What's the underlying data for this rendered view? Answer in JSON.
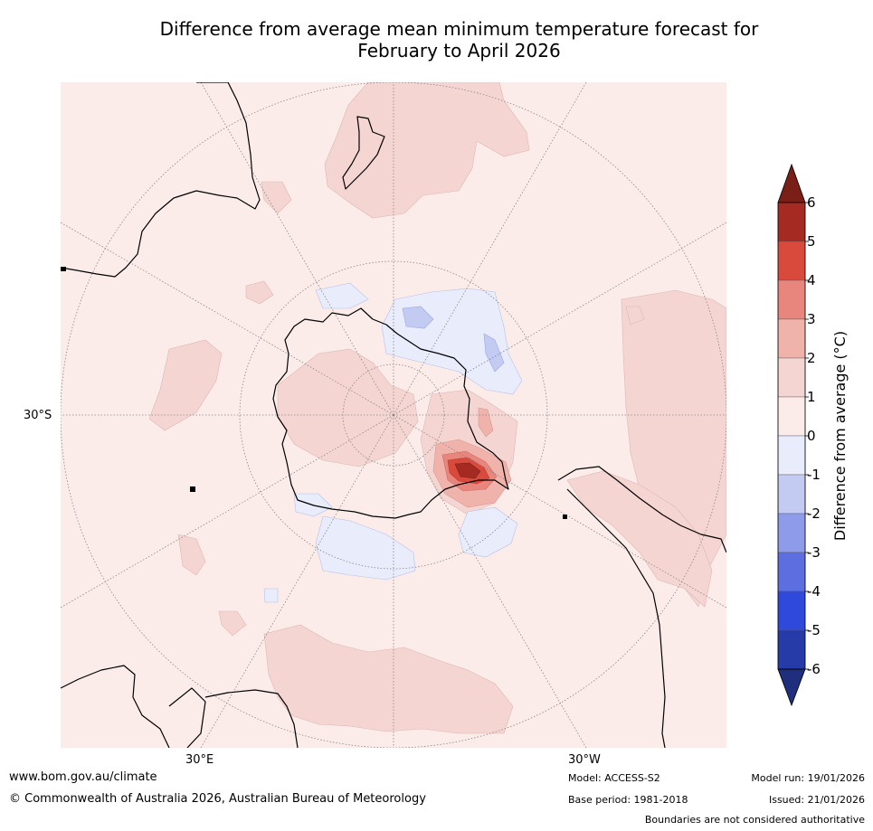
{
  "title_line1": "Difference from average mean minimum temperature forecast for",
  "title_line2": "February to April 2026",
  "map": {
    "lat_label": "30°S",
    "lon_label_left": "30°E",
    "lon_label_right": "30°W"
  },
  "colorbar": {
    "label": "Difference from average (°C)",
    "ticks": [
      "6",
      "5",
      "4",
      "3",
      "2",
      "1",
      "0",
      "-1",
      "-2",
      "-3",
      "-4",
      "-5",
      "-6"
    ],
    "colors_top_to_bottom": [
      "#a52a22",
      "#d94a3d",
      "#e8857c",
      "#efb3ac",
      "#f5d5d2",
      "#fbecea",
      "#e8ecfb",
      "#c3cbf3",
      "#8e9bea",
      "#5d6fe0",
      "#3049dd",
      "#263ba8"
    ],
    "extend_high_color": "#7a1f18",
    "extend_low_color": "#1f2e7d"
  },
  "footer": {
    "url": "www.bom.gov.au/climate",
    "copyright": "© Commonwealth of Australia 2026, Australian Bureau of Meteorology",
    "model": "Model: ACCESS-S2",
    "base_period": "Base period: 1981-2018",
    "model_run": "Model run: 19/01/2026",
    "issued": "Issued: 21/01/2026",
    "disclaimer": "Boundaries are not considered authoritative"
  }
}
